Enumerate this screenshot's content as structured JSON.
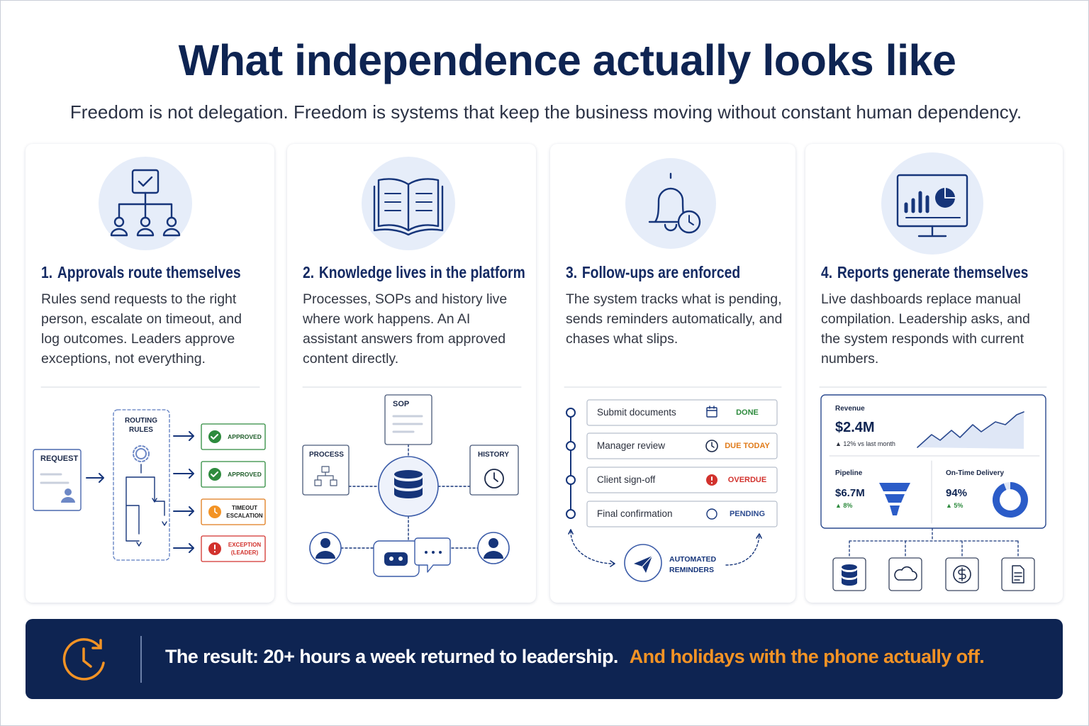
{
  "header": {
    "title": "What independence actually looks like",
    "subtitle": "Freedom is not delegation. Freedom is systems that keep the business moving without constant human dependency."
  },
  "cards": [
    {
      "number": "1.",
      "title": "Approvals route themselves",
      "body": "Rules send requests to the right person, escalate on timeout, and log outcomes. Leaders approve exceptions, not everything.",
      "diagram": {
        "request": "REQUEST",
        "rules": "ROUTING RULES",
        "outcomes": [
          "APPROVED",
          "APPROVED",
          "TIMEOUT ESCALATION",
          "EXCEPTION (LEADER)"
        ]
      }
    },
    {
      "number": "2.",
      "title": "Knowledge lives in the platform",
      "body": "Processes, SOPs and history live where work happens. An AI assistant answers from approved content directly.",
      "diagram": {
        "top": "SOP",
        "left": "PROCESS",
        "right": "HISTORY"
      }
    },
    {
      "number": "3.",
      "title": "Follow-ups are enforced",
      "body": "The system tracks what is pending, sends reminders automatically, and chases what slips.",
      "diagram": {
        "tasks": [
          {
            "label": "Submit documents",
            "status": "DONE"
          },
          {
            "label": "Manager review",
            "status": "DUE TODAY"
          },
          {
            "label": "Client sign-off",
            "status": "OVERDUE"
          },
          {
            "label": "Final confirmation",
            "status": "PENDING"
          }
        ],
        "automation": "AUTOMATED REMINDERS"
      }
    },
    {
      "number": "4.",
      "title": "Reports generate themselves",
      "body": "Live dashboards replace manual compilation. Leadership asks, and the system responds with current numbers.",
      "diagram": {
        "revenue": {
          "label": "Revenue",
          "value": "$2.4M",
          "change": "▲ 12% vs last month"
        },
        "pipeline": {
          "label": "Pipeline",
          "value": "$6.7M",
          "change": "▲ 8%"
        },
        "delivery": {
          "label": "On-Time Delivery",
          "value": "94%",
          "change": "▲ 5%"
        }
      }
    }
  ],
  "footer": {
    "result": "The result: 20+ hours a week returned to leadership.",
    "highlight": "And holidays with the phone actually off."
  }
}
